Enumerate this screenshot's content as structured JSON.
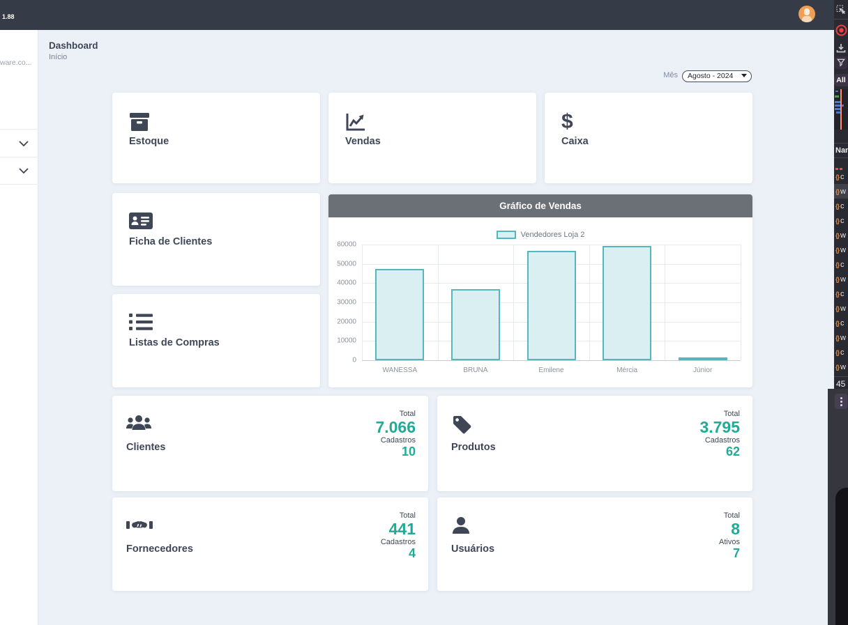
{
  "navbar": {
    "version": "1.88"
  },
  "sidebar": {
    "logo_truncated": "ware.co..."
  },
  "page": {
    "title": "Dashboard",
    "breadcrumb": "Início"
  },
  "month_filter": {
    "label": "Mês",
    "selected": "Agosto - 2024"
  },
  "quick_cards": [
    {
      "label": "Estoque",
      "icon": "box-icon"
    },
    {
      "label": "Vendas",
      "icon": "chart-line-icon"
    },
    {
      "label": "Caixa",
      "icon": "dollar-icon"
    },
    {
      "label": "Ficha de Clientes",
      "icon": "address-card-icon"
    },
    {
      "label": "Listas de Compras",
      "icon": "list-icon"
    }
  ],
  "chart_data": {
    "type": "bar",
    "title": "Gráfico de Vendas",
    "legend": [
      "Vendedores Loja 2"
    ],
    "legend_position": "top",
    "categories": [
      "WANESSA",
      "BRUNA",
      "Emilene",
      "Mércia",
      "Júnior"
    ],
    "values": [
      47300,
      36700,
      56600,
      59200,
      400
    ],
    "ylim": [
      0,
      60000
    ],
    "ytick_step": 10000,
    "grid": true,
    "bar_fill": "#d9eff1",
    "bar_border": "#55b6bd"
  },
  "stat_cards": [
    {
      "label": "Clientes",
      "icon": "users-icon",
      "total_label": "Total",
      "total_value": "7.066",
      "sub_label": "Cadastros",
      "sub_value": "10"
    },
    {
      "label": "Produtos",
      "icon": "tag-icon",
      "total_label": "Total",
      "total_value": "3.795",
      "sub_label": "Cadastros",
      "sub_value": "62"
    },
    {
      "label": "Fornecedores",
      "icon": "handshake-icon",
      "total_label": "Total",
      "total_value": "441",
      "sub_label": "Cadastros",
      "sub_value": "4"
    },
    {
      "label": "Usuários",
      "icon": "user-icon",
      "total_label": "Total",
      "total_value": "8",
      "sub_label": "Ativos",
      "sub_value": "7"
    }
  ],
  "devtools": {
    "all_label": "All",
    "name_header": "Nam",
    "request_count": "45",
    "highlight_index": 1,
    "row_letters": [
      "c",
      "w",
      "c",
      "c",
      "w",
      "w",
      "c",
      "w",
      "c",
      "w",
      "c",
      "w",
      "c",
      "w"
    ]
  },
  "colors": {
    "accent_teal": "#21ab96",
    "icon_orange": "#e0873f",
    "record_red": "#ee4043",
    "navbar_dark": "#353b47",
    "chart_header_gray": "#6b6f76"
  }
}
